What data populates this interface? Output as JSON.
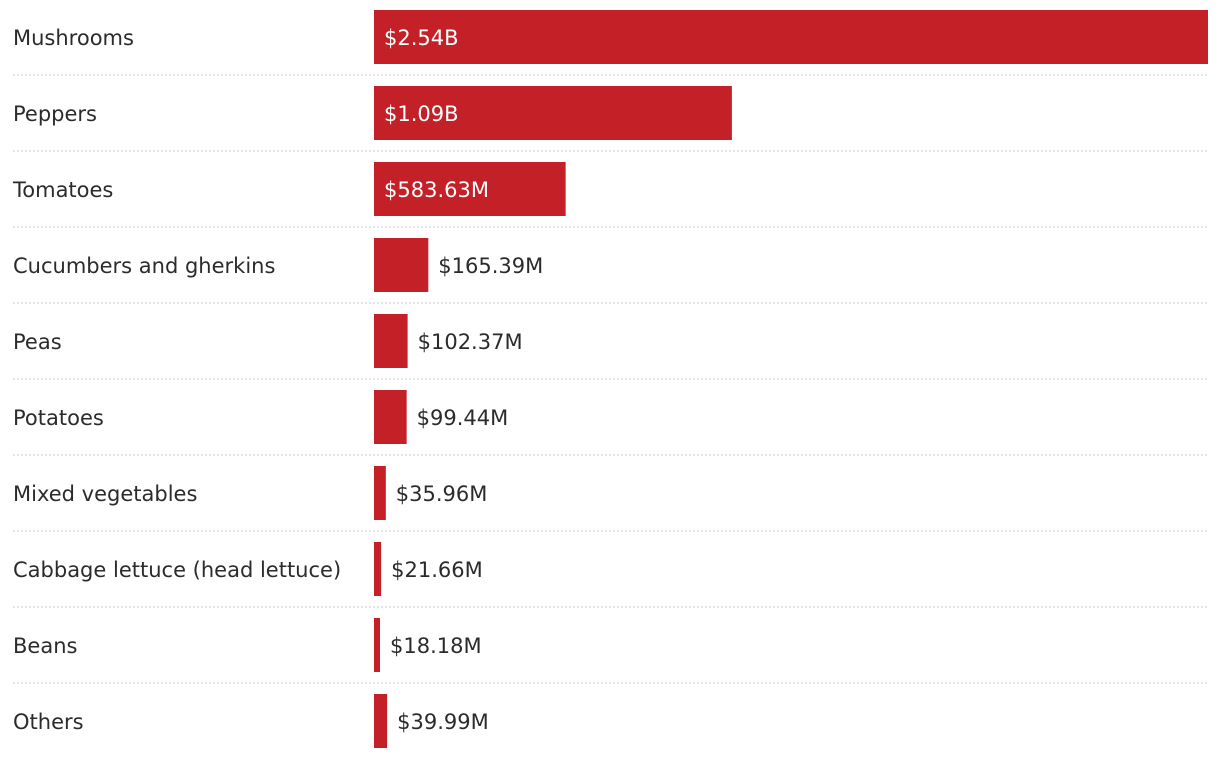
{
  "chart_data": {
    "type": "bar",
    "orientation": "horizontal",
    "title": "",
    "xlabel": "",
    "ylabel": "",
    "color": "#c42027",
    "grid": false,
    "xlim": [
      0,
      2540000000
    ],
    "categories": [
      "Mushrooms",
      "Peppers",
      "Tomatoes",
      "Cucumbers and gherkins",
      "Peas",
      "Potatoes",
      "Mixed vegetables",
      "Cabbage lettuce (head lettuce)",
      "Beans",
      "Others"
    ],
    "values": [
      2540000000,
      1090000000,
      583630000,
      165390000,
      102370000,
      99440000,
      35960000,
      21660000,
      18180000,
      39990000
    ],
    "value_labels": [
      "$2.54B",
      "$1.09B",
      "$583.63M",
      "$165.39M",
      "$102.37M",
      "$99.44M",
      "$35.96M",
      "$21.66M",
      "$18.18M",
      "$39.99M"
    ]
  }
}
